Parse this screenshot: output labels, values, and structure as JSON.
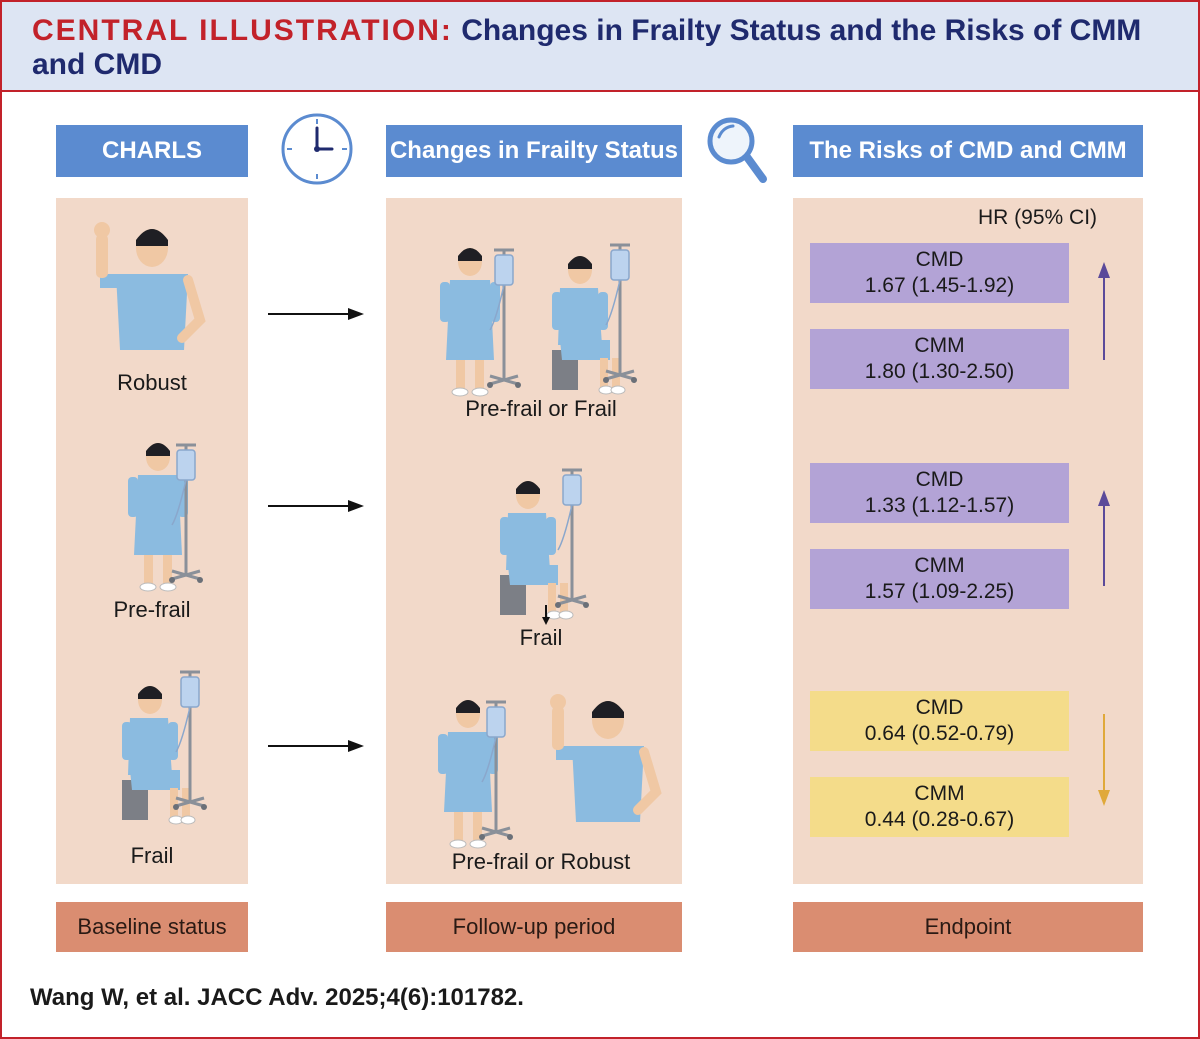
{
  "title": {
    "lead": "CENTRAL ILLUSTRATION:",
    "text": "Changes in Frailty Status and the Risks of CMM and CMD"
  },
  "columns": {
    "left": {
      "header": "CHARLS",
      "footer": "Baseline status"
    },
    "middle": {
      "header": "Changes in Frailty Status",
      "footer": "Follow-up period"
    },
    "right": {
      "header": "The Risks of CMD and CMM",
      "footer": "Endpoint"
    }
  },
  "baseline": [
    {
      "label": "Robust"
    },
    {
      "label": "Pre-frail"
    },
    {
      "label": "Frail"
    }
  ],
  "followup": [
    {
      "label": "Pre-frail or Frail"
    },
    {
      "label": "Frail"
    },
    {
      "label": "Pre-frail or Robust"
    }
  ],
  "endpoint": {
    "ci_header": "HR (95% CI)",
    "groups": [
      {
        "direction": "up",
        "color": "#5b4a9a",
        "items": [
          {
            "name": "CMD",
            "value": "1.67 (1.45-1.92)"
          },
          {
            "name": "CMM",
            "value": "1.80 (1.30-2.50)"
          }
        ]
      },
      {
        "direction": "up",
        "color": "#5b4a9a",
        "items": [
          {
            "name": "CMD",
            "value": "1.33 (1.12-1.57)"
          },
          {
            "name": "CMM",
            "value": "1.57 (1.09-2.25)"
          }
        ]
      },
      {
        "direction": "down",
        "color": "#e0a93a",
        "items": [
          {
            "name": "CMD",
            "value": "0.64 (0.52-0.79)"
          },
          {
            "name": "CMM",
            "value": "0.44 (0.28-0.67)"
          }
        ]
      }
    ]
  },
  "citation": "Wang W, et al. JACC Adv. 2025;4(6):101782.",
  "icons": {
    "time": "clock-icon",
    "search": "magnifier-icon"
  },
  "colors": {
    "header": "#5b8bd0",
    "panel": "#f2d9c9",
    "footer": "#da8d71",
    "accent": "#c2222a",
    "navy": "#1f2a6e"
  }
}
